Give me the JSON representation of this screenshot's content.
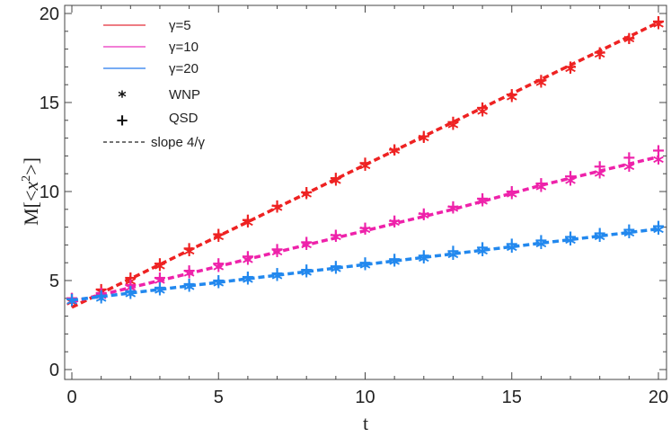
{
  "chart_data": {
    "type": "line",
    "title": "",
    "xlabel": "t",
    "ylabel_parts": {
      "a": "M[<",
      "b": "x",
      "sup": "2",
      "c": ">]"
    },
    "xlim": [
      0,
      20
    ],
    "ylim": [
      0,
      20
    ],
    "xticks": [
      0,
      5,
      10,
      15,
      20
    ],
    "yticks": [
      0,
      5,
      10,
      15,
      20
    ],
    "grid": false,
    "legend": {
      "position": "top-left",
      "entries": [
        {
          "kind": "line",
          "label": "γ=5",
          "color": "#e8505a"
        },
        {
          "kind": "line",
          "label": "γ=10",
          "color": "#ee55c8"
        },
        {
          "kind": "line",
          "label": "γ=20",
          "color": "#4a90f0"
        },
        {
          "kind": "symbol",
          "glyph": "*",
          "label": "WNP"
        },
        {
          "kind": "symbol",
          "glyph": "+",
          "label": "QSD"
        },
        {
          "kind": "dashed",
          "label": "slope 4/γ"
        }
      ]
    },
    "x": [
      0,
      1,
      2,
      3,
      4,
      5,
      6,
      7,
      8,
      9,
      10,
      11,
      12,
      13,
      14,
      15,
      16,
      17,
      18,
      19,
      20
    ],
    "series": [
      {
        "name": "γ=5",
        "color": "#ee2222",
        "wnp": [
          3.8,
          4.35,
          4.95,
          5.8,
          6.65,
          7.45,
          8.25,
          9.1,
          9.85,
          10.6,
          11.45,
          12.3,
          13.0,
          13.75,
          14.5,
          15.3,
          16.1,
          16.9,
          17.7,
          18.55,
          19.4
        ],
        "qsd": [
          4.0,
          4.5,
          5.15,
          5.95,
          6.8,
          7.6,
          8.4,
          9.2,
          9.95,
          10.75,
          11.6,
          12.35,
          13.1,
          13.9,
          14.7,
          15.45,
          16.25,
          17.0,
          17.8,
          18.6,
          19.55
        ],
        "fit": [
          3.5,
          4.3,
          5.1,
          5.9,
          6.7,
          7.5,
          8.3,
          9.1,
          9.9,
          10.7,
          11.5,
          12.3,
          13.1,
          13.9,
          14.7,
          15.5,
          16.3,
          17.1,
          17.9,
          18.7,
          19.5
        ]
      },
      {
        "name": "γ=10",
        "color": "#ee22aa",
        "wnp": [
          3.85,
          4.15,
          4.6,
          5.0,
          5.4,
          5.75,
          6.15,
          6.6,
          7.0,
          7.45,
          7.85,
          8.25,
          8.65,
          9.05,
          9.45,
          9.85,
          10.25,
          10.6,
          11.0,
          11.4,
          11.8
        ],
        "qsd": [
          4.0,
          4.3,
          4.75,
          5.15,
          5.55,
          5.95,
          6.35,
          6.75,
          7.15,
          7.55,
          7.95,
          8.35,
          8.75,
          9.15,
          9.6,
          10.0,
          10.45,
          10.85,
          11.4,
          11.9,
          12.3
        ],
        "fit": [
          3.8,
          4.2,
          4.6,
          5.0,
          5.4,
          5.8,
          6.2,
          6.6,
          7.0,
          7.4,
          7.8,
          8.2,
          8.6,
          9.0,
          9.45,
          9.9,
          10.35,
          10.75,
          11.15,
          11.55,
          11.95
        ]
      },
      {
        "name": "γ=20",
        "color": "#2288ee",
        "wnp": [
          3.85,
          4.0,
          4.25,
          4.45,
          4.65,
          4.85,
          5.05,
          5.25,
          5.45,
          5.65,
          5.85,
          6.05,
          6.25,
          6.45,
          6.65,
          6.85,
          7.05,
          7.25,
          7.45,
          7.65,
          7.85
        ],
        "qsd": [
          3.95,
          4.15,
          4.4,
          4.6,
          4.8,
          5.0,
          5.2,
          5.4,
          5.6,
          5.8,
          6.0,
          6.2,
          6.4,
          6.65,
          6.85,
          7.05,
          7.25,
          7.45,
          7.65,
          7.85,
          8.05
        ],
        "fit": [
          3.9,
          4.1,
          4.3,
          4.5,
          4.7,
          4.9,
          5.1,
          5.3,
          5.5,
          5.7,
          5.9,
          6.1,
          6.3,
          6.5,
          6.7,
          6.9,
          7.1,
          7.3,
          7.5,
          7.7,
          7.9
        ]
      }
    ]
  }
}
